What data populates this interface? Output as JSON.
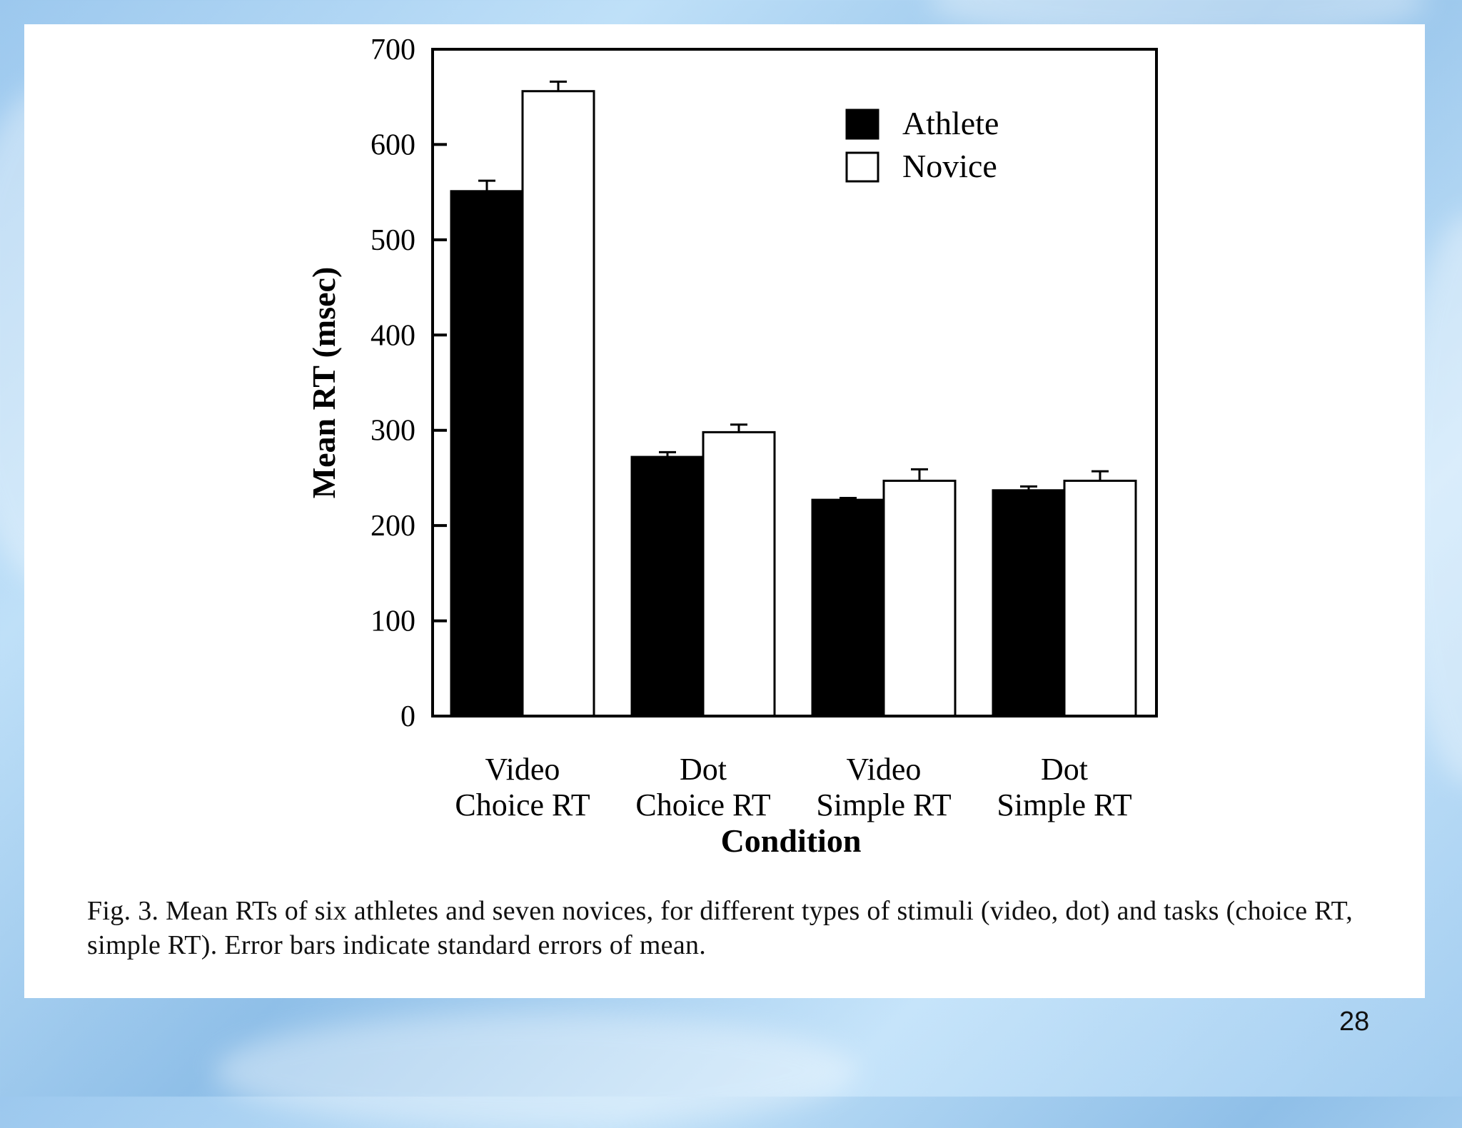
{
  "slide": {
    "number": "28"
  },
  "caption": "Fig. 3. Mean RTs of six athletes and seven novices, for different types of stimuli (video, dot) and tasks (choice RT, simple RT). Error bars indicate standard errors of mean.",
  "chart_data": {
    "type": "bar",
    "title": "",
    "xlabel": "Condition",
    "ylabel": "Mean RT (msec)",
    "ylim": [
      0,
      700
    ],
    "yticks": [
      0,
      100,
      200,
      300,
      400,
      500,
      600,
      700
    ],
    "categories": [
      [
        "Video",
        "Choice RT"
      ],
      [
        "Dot",
        "Choice RT"
      ],
      [
        "Video",
        "Simple RT"
      ],
      [
        "Dot",
        "Simple RT"
      ]
    ],
    "series": [
      {
        "name": "Athlete",
        "color": "#000000",
        "values": [
          551,
          272,
          227,
          237
        ],
        "errors": [
          11,
          5,
          2,
          4
        ]
      },
      {
        "name": "Novice",
        "color": "#ffffff",
        "values": [
          656,
          298,
          247,
          247
        ],
        "errors": [
          10,
          8,
          12,
          10
        ]
      }
    ],
    "legend": "top-right",
    "error_bars": "standard error of mean"
  }
}
